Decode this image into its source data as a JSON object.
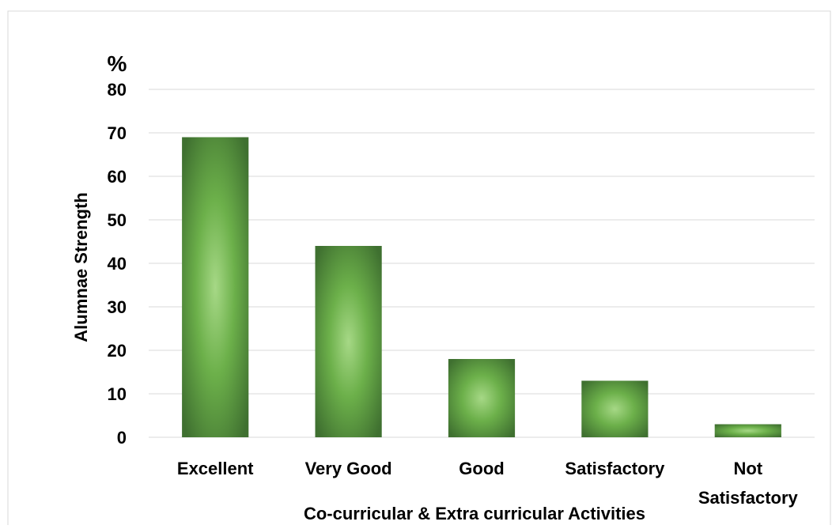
{
  "chart_data": {
    "type": "bar",
    "title": "",
    "unit_label": "%",
    "xlabel": "Co-curricular & Extra curricular Activities",
    "ylabel": "Alumnae Strength",
    "categories": [
      "Excellent",
      "Very Good",
      "Good",
      "Satisfactory",
      "Not Satisfactory"
    ],
    "category_lines": [
      [
        "Excellent"
      ],
      [
        "Very Good"
      ],
      [
        "Good"
      ],
      [
        "Satisfactory"
      ],
      [
        "Not",
        "Satisfactory"
      ]
    ],
    "values": [
      69,
      44,
      18,
      13,
      3
    ],
    "ylim": [
      0,
      80
    ],
    "yticks": [
      "0",
      "10",
      "20",
      "30",
      "40",
      "50",
      "60",
      "70",
      "80"
    ],
    "grid": true,
    "legend": "none",
    "colors": {
      "bar_center": "#a6d886",
      "bar_mid": "#6cb04a",
      "bar_edge": "#3f7030",
      "grid": "#d9d9d9",
      "border": "#d9d9d9"
    }
  }
}
